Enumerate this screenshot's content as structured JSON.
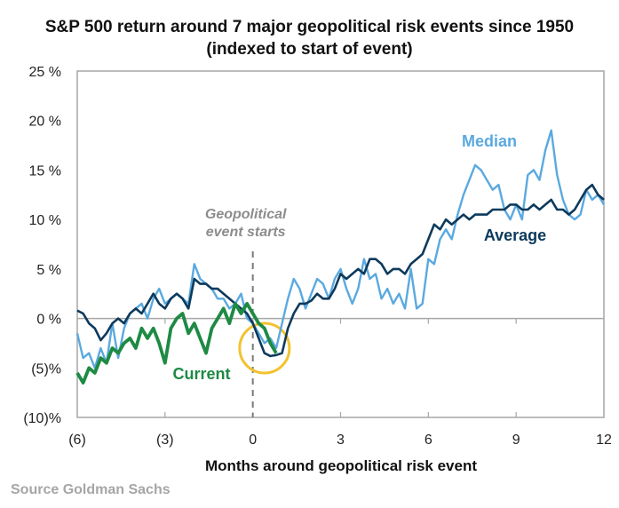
{
  "chart_data": {
    "type": "line",
    "title": "S&P 500 return around 7 major geopolitical risk events since 1950",
    "subtitle": "(indexed to start of event)",
    "xlabel": "Months around geopolitical risk event",
    "ylabel": "",
    "xlim": [
      -6,
      12
    ],
    "ylim": [
      -10,
      25
    ],
    "x_ticks": [
      -6,
      -3,
      0,
      3,
      6,
      9,
      12
    ],
    "x_tick_labels": [
      "(6)",
      "(3)",
      "0",
      "3",
      "6",
      "9",
      "12"
    ],
    "y_ticks": [
      25,
      20,
      15,
      10,
      5,
      0,
      -5,
      -10
    ],
    "y_tick_labels": [
      "25 %",
      "20 %",
      "15 %",
      "10 %",
      "5 %",
      "0 %",
      "(5)%",
      "(10)%"
    ],
    "grid": false,
    "zero_line": true,
    "source": "Source Goldman Sachs",
    "annotations": [
      {
        "text_lines": [
          "Geopolitical",
          "event starts"
        ],
        "x": 0,
        "type": "dashed-vertical-line"
      },
      {
        "text": "highlight-circle",
        "x": 0.4,
        "y": -3,
        "type": "circle"
      }
    ],
    "series": [
      {
        "name": "Median",
        "label": "Median",
        "color": "#5aa9e0",
        "x": [
          -6,
          -5.8,
          -5.6,
          -5.4,
          -5.2,
          -5,
          -4.8,
          -4.6,
          -4.4,
          -4.2,
          -4,
          -3.8,
          -3.6,
          -3.4,
          -3.2,
          -3,
          -2.8,
          -2.6,
          -2.4,
          -2.2,
          -2,
          -1.8,
          -1.6,
          -1.4,
          -1.2,
          -1,
          -0.8,
          -0.6,
          -0.4,
          -0.2,
          0,
          0.2,
          0.4,
          0.6,
          0.8,
          1,
          1.2,
          1.4,
          1.6,
          1.8,
          2,
          2.2,
          2.4,
          2.6,
          2.8,
          3,
          3.2,
          3.4,
          3.6,
          3.8,
          4,
          4.2,
          4.4,
          4.6,
          4.8,
          5,
          5.2,
          5.4,
          5.6,
          5.8,
          6,
          6.2,
          6.4,
          6.6,
          6.8,
          7,
          7.2,
          7.4,
          7.6,
          7.8,
          8,
          8.2,
          8.4,
          8.6,
          8.8,
          9,
          9.2,
          9.4,
          9.6,
          9.8,
          10,
          10.2,
          10.4,
          10.6,
          10.8,
          11,
          11.2,
          11.4,
          11.6,
          11.8,
          12
        ],
        "values": [
          -1.5,
          -4,
          -3.5,
          -5,
          -3,
          -4.5,
          -0.5,
          -4,
          -1,
          0.5,
          1,
          1.5,
          0,
          2,
          3,
          1.5,
          2,
          2.5,
          2,
          1.5,
          5.5,
          4,
          3.5,
          3,
          2,
          2,
          1,
          1.5,
          2.5,
          0,
          -0.5,
          -1.5,
          -2.5,
          -2,
          -3,
          -0.5,
          2,
          4,
          3,
          1,
          2.5,
          4,
          3.5,
          2,
          4,
          5,
          3,
          1.5,
          3,
          6,
          4,
          4.5,
          2,
          3,
          1.5,
          2.5,
          1,
          5,
          1,
          1.5,
          6,
          5.5,
          8,
          9,
          8,
          10.5,
          12.5,
          14,
          15.5,
          15,
          14,
          13,
          13.5,
          11,
          10,
          11.5,
          10,
          14.5,
          15,
          14,
          17,
          19,
          14.5,
          12,
          10.5,
          10,
          10.5,
          13,
          12,
          12.5,
          11.5
        ]
      },
      {
        "name": "Average",
        "label": "Average",
        "color": "#0d3a5c",
        "x": [
          -6,
          -5.8,
          -5.6,
          -5.4,
          -5.2,
          -5,
          -4.8,
          -4.6,
          -4.4,
          -4.2,
          -4,
          -3.8,
          -3.6,
          -3.4,
          -3.2,
          -3,
          -2.8,
          -2.6,
          -2.4,
          -2.2,
          -2,
          -1.8,
          -1.6,
          -1.4,
          -1.2,
          -1,
          -0.8,
          -0.6,
          -0.4,
          -0.2,
          0,
          0.2,
          0.4,
          0.6,
          0.8,
          1,
          1.2,
          1.4,
          1.6,
          1.8,
          2,
          2.2,
          2.4,
          2.6,
          2.8,
          3,
          3.2,
          3.4,
          3.6,
          3.8,
          4,
          4.2,
          4.4,
          4.6,
          4.8,
          5,
          5.2,
          5.4,
          5.6,
          5.8,
          6,
          6.2,
          6.4,
          6.6,
          6.8,
          7,
          7.2,
          7.4,
          7.6,
          7.8,
          8,
          8.2,
          8.4,
          8.6,
          8.8,
          9,
          9.2,
          9.4,
          9.6,
          9.8,
          10,
          10.2,
          10.4,
          10.6,
          10.8,
          11,
          11.2,
          11.4,
          11.6,
          11.8,
          12
        ],
        "values": [
          0.8,
          0.5,
          -0.5,
          -1,
          -2.2,
          -1.5,
          -0.5,
          0,
          -0.5,
          0.5,
          1,
          0.5,
          1.5,
          2.5,
          1.5,
          1,
          2,
          2.5,
          2,
          1,
          4,
          3.5,
          3.5,
          3,
          3,
          2.5,
          2,
          1.5,
          1,
          0.5,
          -0.5,
          -2,
          -3.5,
          -3.8,
          -3.7,
          -3.5,
          -1,
          0.5,
          1.5,
          1.5,
          1.8,
          2.5,
          2,
          2,
          3,
          4.5,
          4,
          4.5,
          5,
          4.5,
          6,
          6,
          5.5,
          4.5,
          5,
          5,
          4.5,
          5.5,
          6,
          6.5,
          8,
          9.5,
          9,
          10,
          9.5,
          10,
          10.5,
          10,
          10.5,
          10.5,
          10.5,
          11,
          11,
          11,
          11.5,
          11.5,
          11,
          11,
          11.5,
          11,
          11.5,
          12,
          11,
          11,
          10.5,
          11,
          12,
          13,
          13.5,
          12.5,
          12
        ]
      },
      {
        "name": "Current",
        "label": "Current",
        "color": "#1e8a44",
        "x": [
          -6,
          -5.8,
          -5.6,
          -5.4,
          -5.2,
          -5,
          -4.8,
          -4.6,
          -4.4,
          -4.2,
          -4,
          -3.8,
          -3.6,
          -3.4,
          -3.2,
          -3,
          -2.8,
          -2.6,
          -2.4,
          -2.2,
          -2,
          -1.8,
          -1.6,
          -1.4,
          -1.2,
          -1,
          -0.8,
          -0.6,
          -0.4,
          -0.2,
          0,
          0.2,
          0.4,
          0.6,
          0.8
        ],
        "values": [
          -5.5,
          -6.5,
          -5,
          -5.5,
          -4,
          -4.5,
          -3,
          -3.5,
          -2.5,
          -2,
          -3,
          -1,
          -2,
          -1,
          -2.5,
          -4.5,
          -1,
          0,
          0.5,
          -1.5,
          -0.5,
          -2,
          -3.5,
          -1,
          0,
          1,
          -0.5,
          1.5,
          0.5,
          1.5,
          0.5,
          -0.5,
          -1,
          -2.5,
          -3.5
        ]
      }
    ],
    "highlight_color": "#f2c230",
    "axis_color": "#a6a6a6"
  }
}
